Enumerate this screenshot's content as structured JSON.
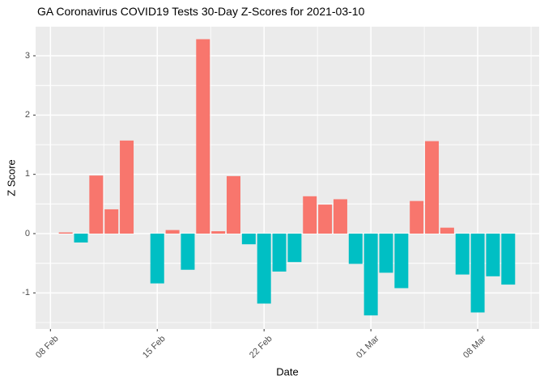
{
  "title": "GA Coronavirus COVID19 Tests 30-Day Z-Scores for 2021-03-10",
  "chart_data": {
    "type": "bar",
    "title": "GA Coronavirus COVID19 Tests 30-Day Z-Scores for 2021-03-10",
    "xlabel": "Date",
    "ylabel": "Z Score",
    "x_tick_labels": [
      "08 Feb",
      "15 Feb",
      "22 Feb",
      "01 Mar",
      "08 Mar"
    ],
    "x_tick_dates": [
      "2021-02-08",
      "2021-02-15",
      "2021-02-22",
      "2021-03-01",
      "2021-03-08"
    ],
    "y_ticks": [
      3,
      2,
      1,
      0,
      -1
    ],
    "ylim": [
      -1.61,
      3.47
    ],
    "grid": true,
    "legend": false,
    "dates": [
      "2021-02-09",
      "2021-02-10",
      "2021-02-11",
      "2021-02-12",
      "2021-02-13",
      "2021-02-14",
      "2021-02-15",
      "2021-02-16",
      "2021-02-17",
      "2021-02-18",
      "2021-02-19",
      "2021-02-20",
      "2021-02-21",
      "2021-02-22",
      "2021-02-23",
      "2021-02-24",
      "2021-02-25",
      "2021-02-26",
      "2021-02-27",
      "2021-02-28",
      "2021-03-01",
      "2021-03-02",
      "2021-03-03",
      "2021-03-04",
      "2021-03-05",
      "2021-03-06",
      "2021-03-07",
      "2021-03-08",
      "2021-03-09",
      "2021-03-10"
    ],
    "values": [
      0.02,
      -0.15,
      0.98,
      0.41,
      1.57,
      0.0,
      -0.84,
      0.06,
      -0.61,
      3.28,
      0.04,
      0.97,
      -0.18,
      -1.18,
      -0.64,
      -0.48,
      0.63,
      0.49,
      0.58,
      -0.51,
      -1.38,
      -0.66,
      -0.92,
      0.55,
      1.56,
      0.1,
      -0.69,
      -1.33,
      -0.72,
      -0.86
    ],
    "positive_color": "#F8766D",
    "negative_color": "#00BFC4",
    "panel_color": "#EBEBEB",
    "grid_color": "#FFFFFF",
    "tick_color": "#333333",
    "axis_text_color": "#4D4D4D"
  }
}
